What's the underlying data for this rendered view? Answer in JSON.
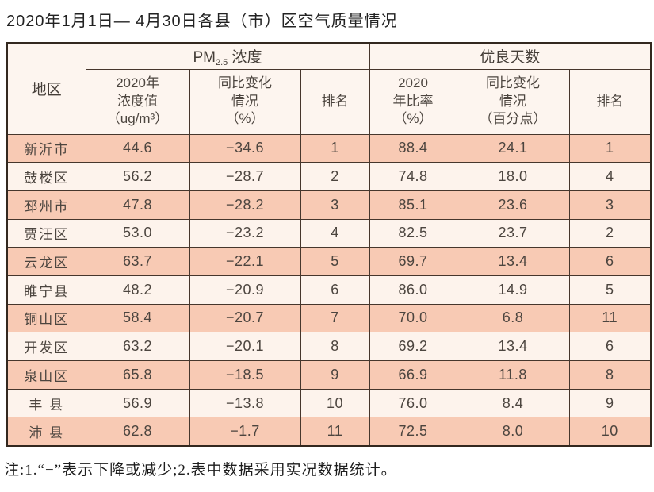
{
  "page": {
    "title": "2020年1月1日— 4月30日各县（市）区空气质量情况",
    "footnote": "注:1.“−”表示下降或减少;2.表中数据采用实况数据统计。"
  },
  "colors": {
    "row_odd_bg": "#f8cab4",
    "row_even_bg": "#fdf3ec",
    "header_bg": "#fdf5ef",
    "border": "#46362c",
    "cell_text": "#4c453f"
  },
  "table": {
    "headers": {
      "region": "地区",
      "pm_group": {
        "prefix": "PM",
        "sub": "2.5",
        "suffix": " 浓度"
      },
      "good_group": "优良天数",
      "pm_value": "2020年\n浓度值\n（ug/m³）",
      "pm_change": "同比变化\n情况\n（%）",
      "pm_rank": "排名",
      "good_rate": "2020\n年比率\n（%）",
      "good_change": "同比变化\n情况\n（百分点）",
      "good_rank": "排名"
    },
    "rows": [
      {
        "region": "新沂市",
        "pm_value": "44.6",
        "pm_change": "−34.6",
        "pm_rank": "1",
        "good_rate": "88.4",
        "good_change": "24.1",
        "good_rank": "1"
      },
      {
        "region": "鼓楼区",
        "pm_value": "56.2",
        "pm_change": "−28.7",
        "pm_rank": "2",
        "good_rate": "74.8",
        "good_change": "18.0",
        "good_rank": "4"
      },
      {
        "region": "邳州市",
        "pm_value": "47.8",
        "pm_change": "−28.2",
        "pm_rank": "3",
        "good_rate": "85.1",
        "good_change": "23.6",
        "good_rank": "3"
      },
      {
        "region": "贾汪区",
        "pm_value": "53.0",
        "pm_change": "−23.2",
        "pm_rank": "4",
        "good_rate": "82.5",
        "good_change": "23.7",
        "good_rank": "2"
      },
      {
        "region": "云龙区",
        "pm_value": "63.7",
        "pm_change": "−22.1",
        "pm_rank": "5",
        "good_rate": "69.7",
        "good_change": "13.4",
        "good_rank": "6"
      },
      {
        "region": "睢宁县",
        "pm_value": "48.2",
        "pm_change": "−20.9",
        "pm_rank": "6",
        "good_rate": "86.0",
        "good_change": "14.9",
        "good_rank": "5"
      },
      {
        "region": "铜山区",
        "pm_value": "58.4",
        "pm_change": "−20.7",
        "pm_rank": "7",
        "good_rate": "70.0",
        "good_change": "6.8",
        "good_rank": "11"
      },
      {
        "region": "开发区",
        "pm_value": "63.2",
        "pm_change": "−20.1",
        "pm_rank": "8",
        "good_rate": "69.2",
        "good_change": "13.4",
        "good_rank": "6"
      },
      {
        "region": "泉山区",
        "pm_value": "65.8",
        "pm_change": "−18.5",
        "pm_rank": "9",
        "good_rate": "66.9",
        "good_change": "11.8",
        "good_rank": "8"
      },
      {
        "region": "丰 县",
        "pm_value": "56.9",
        "pm_change": "−13.8",
        "pm_rank": "10",
        "good_rate": "76.0",
        "good_change": "8.4",
        "good_rank": "9"
      },
      {
        "region": "沛 县",
        "pm_value": "62.8",
        "pm_change": "−1.7",
        "pm_rank": "11",
        "good_rate": "72.5",
        "good_change": "8.0",
        "good_rank": "10"
      }
    ]
  }
}
